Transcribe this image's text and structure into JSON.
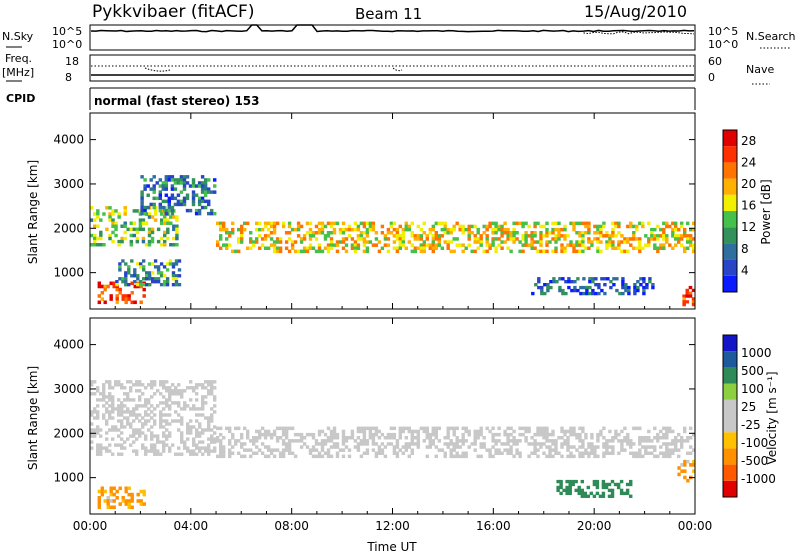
{
  "header": {
    "radar": "Pykkvibaer (fitACF)",
    "beam": "Beam 11",
    "date": "15/Aug/2010"
  },
  "noise_panel": {
    "left_label": "N.Sky",
    "left_ticks": [
      "10^5",
      "10^0"
    ],
    "right_label": "N.Search",
    "right_ticks": [
      "10^5",
      "10^0"
    ]
  },
  "freq_panel": {
    "left_label_1": "Freq.",
    "left_label_2": "[MHz]",
    "left_ticks": [
      "18",
      "8"
    ],
    "right_label": "Nave",
    "right_ticks": [
      "60",
      "0"
    ]
  },
  "cpid_panel": {
    "label": "CPID",
    "text": "normal (fast stereo) 153"
  },
  "colors": {
    "scale_power": [
      "#0a1cff",
      "#2845c8",
      "#2f6fa0",
      "#33925a",
      "#45c04a",
      "#f0f000",
      "#ffb000",
      "#ff7300",
      "#ff3000",
      "#e00000"
    ],
    "scale_velocity": [
      "#e00000",
      "#ff5a00",
      "#ff9000",
      "#ffc000",
      "#c8c8c8",
      "#c8c8c8",
      "#8cd040",
      "#2e8b57",
      "#1c5a9c",
      "#1515c8"
    ],
    "ground_scatter": "#c8c8c8"
  },
  "chart_data": [
    {
      "type": "heatmap",
      "panel": "power",
      "ylabel": "Slant Range [km]",
      "yticks": [
        "4000",
        "3000",
        "2000",
        "1000"
      ],
      "ytick_values": [
        4000,
        3000,
        2000,
        1000
      ],
      "ylim": [
        180,
        4600
      ],
      "xlim": [
        0,
        24
      ],
      "colorbar_label": "Power [dB]",
      "colorbar_ticks": [
        "28",
        "24",
        "20",
        "16",
        "12",
        "8",
        "4"
      ],
      "colorbar_range": [
        0,
        30
      ],
      "scatter_regions": [
        {
          "t_start": 0.0,
          "t_end": 3.5,
          "r_low": 1600,
          "r_high": 2500,
          "power": 14
        },
        {
          "t_start": 2.0,
          "t_end": 5.0,
          "r_low": 2300,
          "r_high": 3200,
          "power": 8
        },
        {
          "t_start": 0.3,
          "t_end": 2.2,
          "r_low": 300,
          "r_high": 800,
          "power": 26
        },
        {
          "t_start": 1.0,
          "t_end": 3.6,
          "r_low": 700,
          "r_high": 1300,
          "power": 10
        },
        {
          "t_start": 5.0,
          "t_end": 24.0,
          "r_low": 1450,
          "r_high": 2150,
          "power": 18
        },
        {
          "t_start": 17.5,
          "t_end": 22.5,
          "r_low": 500,
          "r_high": 900,
          "power": 6
        },
        {
          "t_start": 23.5,
          "t_end": 24.0,
          "r_low": 250,
          "r_high": 700,
          "power": 26
        }
      ]
    },
    {
      "type": "heatmap",
      "panel": "velocity",
      "ylabel": "Slant Range [km]",
      "xlabel": "Time UT",
      "xticks": [
        "00:00",
        "04:00",
        "08:00",
        "12:00",
        "16:00",
        "20:00",
        "00:00"
      ],
      "xtick_values": [
        0,
        4,
        8,
        12,
        16,
        20,
        24
      ],
      "yticks": [
        "4000",
        "3000",
        "2000",
        "1000"
      ],
      "ytick_values": [
        4000,
        3000,
        2000,
        1000
      ],
      "ylim": [
        180,
        4600
      ],
      "xlim": [
        0,
        24
      ],
      "colorbar_label": "Velocity [m s⁻¹]",
      "colorbar_ticks": [
        "1000",
        "500",
        "100",
        "25",
        "-25",
        "-100",
        "-500",
        "-1000"
      ],
      "scatter_regions": [
        {
          "t_start": 0.0,
          "t_end": 5.0,
          "r_low": 1500,
          "r_high": 3200,
          "class": "ground"
        },
        {
          "t_start": 5.0,
          "t_end": 24.0,
          "r_low": 1450,
          "r_high": 2150,
          "class": "ground"
        },
        {
          "t_start": 0.3,
          "t_end": 2.2,
          "r_low": 300,
          "r_high": 800,
          "velocity": -200
        },
        {
          "t_start": 18.5,
          "t_end": 21.5,
          "r_low": 550,
          "r_high": 950,
          "velocity": 300
        },
        {
          "t_start": 23.3,
          "t_end": 24.0,
          "r_low": 900,
          "r_high": 1400,
          "velocity": -150
        }
      ]
    }
  ]
}
